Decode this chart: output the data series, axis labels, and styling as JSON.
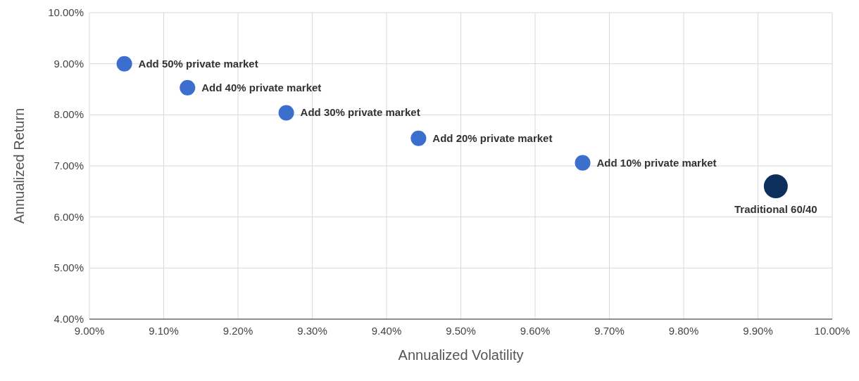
{
  "chart_data": {
    "type": "bubble",
    "xlabel": "Annualized Volatility",
    "ylabel": "Annualized Return",
    "x": [
      9.047,
      9.132,
      9.265,
      9.443,
      9.664,
      9.924
    ],
    "values": [
      9.0,
      8.53,
      8.04,
      7.54,
      7.06,
      6.6
    ],
    "sizes": [
      0.42,
      0.42,
      0.42,
      0.42,
      0.42,
      1
    ],
    "colors": [
      "#3c6fcd",
      "#3c6fcd",
      "#3c6fcd",
      "#3c6fcd",
      "#3c6fcd",
      "#0d2f5c"
    ],
    "annotations": [
      {
        "text": "Add 50% private market",
        "x": 9.047,
        "y": 9.0
      },
      {
        "text": "Add 40% private market",
        "x": 9.132,
        "y": 8.53
      },
      {
        "text": "Add 30% private market",
        "x": 9.265,
        "y": 8.04
      },
      {
        "text": "Add 20% private market",
        "x": 9.443,
        "y": 7.54
      },
      {
        "text": "Add 10% private market",
        "x": 9.664,
        "y": 7.06
      },
      {
        "text": "Traditional 60/40",
        "x": 9.924,
        "y": 6.6
      }
    ],
    "xlim": [
      9,
      10
    ],
    "ylim": [
      4,
      10
    ],
    "xticks": [
      {
        "value": 9,
        "label": "9.00%"
      },
      {
        "value": 9.1,
        "label": "9.10%"
      },
      {
        "value": 9.2,
        "label": "9.20%"
      },
      {
        "value": 9.3,
        "label": "9.30%"
      },
      {
        "value": 9.4,
        "label": "9.40%"
      },
      {
        "value": 9.5,
        "label": "9.50%"
      },
      {
        "value": 9.6,
        "label": "9.60%"
      },
      {
        "value": 9.7,
        "label": "9.70%"
      },
      {
        "value": 9.8,
        "label": "9.80%"
      },
      {
        "value": 9.9,
        "label": "9.90%"
      },
      {
        "value": 10,
        "label": "10.00%"
      }
    ],
    "yticks": [
      {
        "value": 4,
        "label": "4.00%"
      },
      {
        "value": 5,
        "label": "5.00%"
      },
      {
        "value": 6,
        "label": "6.00%"
      },
      {
        "value": 7,
        "label": "7.00%"
      },
      {
        "value": 8,
        "label": "8.00%"
      },
      {
        "value": 9,
        "label": "9.00%"
      },
      {
        "value": 10,
        "label": "10.00%"
      }
    ],
    "grid": true
  }
}
